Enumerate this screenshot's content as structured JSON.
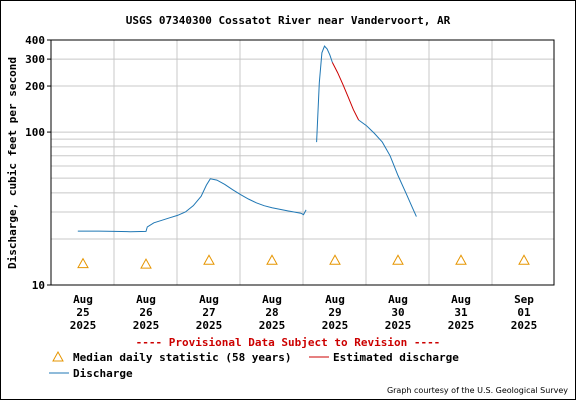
{
  "chart_data": {
    "type": "line",
    "title": "USGS 07340300 Cossatot River near Vandervoort, AR",
    "ylabel": "Discharge, cubic feet per second",
    "yscale": "log",
    "ylim": [
      10,
      400
    ],
    "y_ticks": [
      {
        "value": 10,
        "label": "10"
      },
      {
        "value": 100,
        "label": "100"
      },
      {
        "value": 200,
        "label": "200"
      },
      {
        "value": 300,
        "label": "300"
      },
      {
        "value": 400,
        "label": "400"
      }
    ],
    "xlim": [
      "2025-08-25",
      "2025-09-01"
    ],
    "x_ticks": [
      {
        "date": "2025-08-25",
        "lines": [
          "Aug",
          "25",
          "2025"
        ]
      },
      {
        "date": "2025-08-26",
        "lines": [
          "Aug",
          "26",
          "2025"
        ]
      },
      {
        "date": "2025-08-27",
        "lines": [
          "Aug",
          "27",
          "2025"
        ]
      },
      {
        "date": "2025-08-28",
        "lines": [
          "Aug",
          "28",
          "2025"
        ]
      },
      {
        "date": "2025-08-29",
        "lines": [
          "Aug",
          "29",
          "2025"
        ]
      },
      {
        "date": "2025-08-30",
        "lines": [
          "Aug",
          "30",
          "2025"
        ]
      },
      {
        "date": "2025-08-31",
        "lines": [
          "Aug",
          "31",
          "2025"
        ]
      },
      {
        "date": "2025-09-01",
        "lines": [
          "Sep",
          "01",
          "2025"
        ]
      }
    ],
    "grid": true,
    "series": [
      {
        "name": "Discharge",
        "color": "#1f77b4",
        "segments": [
          [
            [
              "2025-08-24T22:00",
              22.5
            ],
            [
              "2025-08-25T06:00",
              22.5
            ],
            [
              "2025-08-25T12:00",
              22.4
            ],
            [
              "2025-08-25T18:00",
              22.3
            ],
            [
              "2025-08-26T00:00",
              22.4
            ],
            [
              "2025-08-26T00:30",
              24.0
            ],
            [
              "2025-08-26T03:00",
              25.5
            ],
            [
              "2025-08-26T06:00",
              26.5
            ],
            [
              "2025-08-26T09:00",
              27.5
            ],
            [
              "2025-08-26T12:00",
              28.5
            ],
            [
              "2025-08-26T15:00",
              30.0
            ],
            [
              "2025-08-26T18:00",
              33.0
            ],
            [
              "2025-08-26T21:00",
              38.0
            ],
            [
              "2025-08-26T23:00",
              45.0
            ],
            [
              "2025-08-27T00:30",
              49.5
            ],
            [
              "2025-08-27T03:00",
              48.5
            ],
            [
              "2025-08-27T06:00",
              45.5
            ],
            [
              "2025-08-27T09:00",
              42.0
            ],
            [
              "2025-08-27T12:00",
              39.0
            ],
            [
              "2025-08-27T15:00",
              36.5
            ],
            [
              "2025-08-27T18:00",
              34.5
            ],
            [
              "2025-08-27T21:00",
              33.0
            ],
            [
              "2025-08-28T00:00",
              32.0
            ],
            [
              "2025-08-28T06:00",
              30.5
            ],
            [
              "2025-08-28T11:00",
              29.5
            ],
            [
              "2025-08-28T12:00",
              28.8
            ],
            [
              "2025-08-28T13:00",
              31.0
            ]
          ],
          [
            [
              "2025-08-28T17:00",
              86.0
            ],
            [
              "2025-08-28T18:00",
              210.0
            ],
            [
              "2025-08-28T19:00",
              330.0
            ],
            [
              "2025-08-28T20:00",
              365.0
            ],
            [
              "2025-08-28T21:00",
              350.0
            ],
            [
              "2025-08-28T22:00",
              320.0
            ],
            [
              "2025-08-28T23:00",
              285.0
            ]
          ],
          [
            [
              "2025-08-29T09:00",
              120.0
            ],
            [
              "2025-08-29T12:00",
              110.0
            ],
            [
              "2025-08-29T15:00",
              98.0
            ],
            [
              "2025-08-29T18:00",
              86.0
            ],
            [
              "2025-08-29T21:00",
              70.0
            ],
            [
              "2025-08-30T00:00",
              52.0
            ],
            [
              "2025-08-30T03:00",
              40.0
            ],
            [
              "2025-08-30T05:30",
              32.0
            ],
            [
              "2025-08-30T07:00",
              28.0
            ]
          ]
        ]
      },
      {
        "name": "Estimated discharge",
        "color": "#cc0000",
        "segments": [
          [
            [
              "2025-08-28T23:00",
              285.0
            ],
            [
              "2025-08-29T01:00",
              245.0
            ],
            [
              "2025-08-29T03:00",
              205.0
            ],
            [
              "2025-08-29T05:00",
              170.0
            ],
            [
              "2025-08-29T07:00",
              140.0
            ],
            [
              "2025-08-29T09:00",
              120.0
            ]
          ]
        ]
      },
      {
        "name": "Median daily statistic (58 years)",
        "marker": "triangle",
        "color": "#e69500",
        "points": [
          [
            "2025-08-25T00:00",
            13.8
          ],
          [
            "2025-08-26T00:00",
            13.7
          ],
          [
            "2025-08-27T00:00",
            14.5
          ],
          [
            "2025-08-28T00:00",
            14.5
          ],
          [
            "2025-08-29T00:00",
            14.5
          ],
          [
            "2025-08-30T00:00",
            14.5
          ],
          [
            "2025-08-31T00:00",
            14.5
          ],
          [
            "2025-09-01T00:00",
            14.5
          ]
        ]
      }
    ],
    "legend": {
      "median": "Median daily statistic (58 years)",
      "estimated": "Estimated discharge",
      "discharge": "Discharge"
    },
    "provisional_note": "---- Provisional Data Subject to Revision ----",
    "credit": "Graph courtesy of the U.S. Geological Survey"
  }
}
